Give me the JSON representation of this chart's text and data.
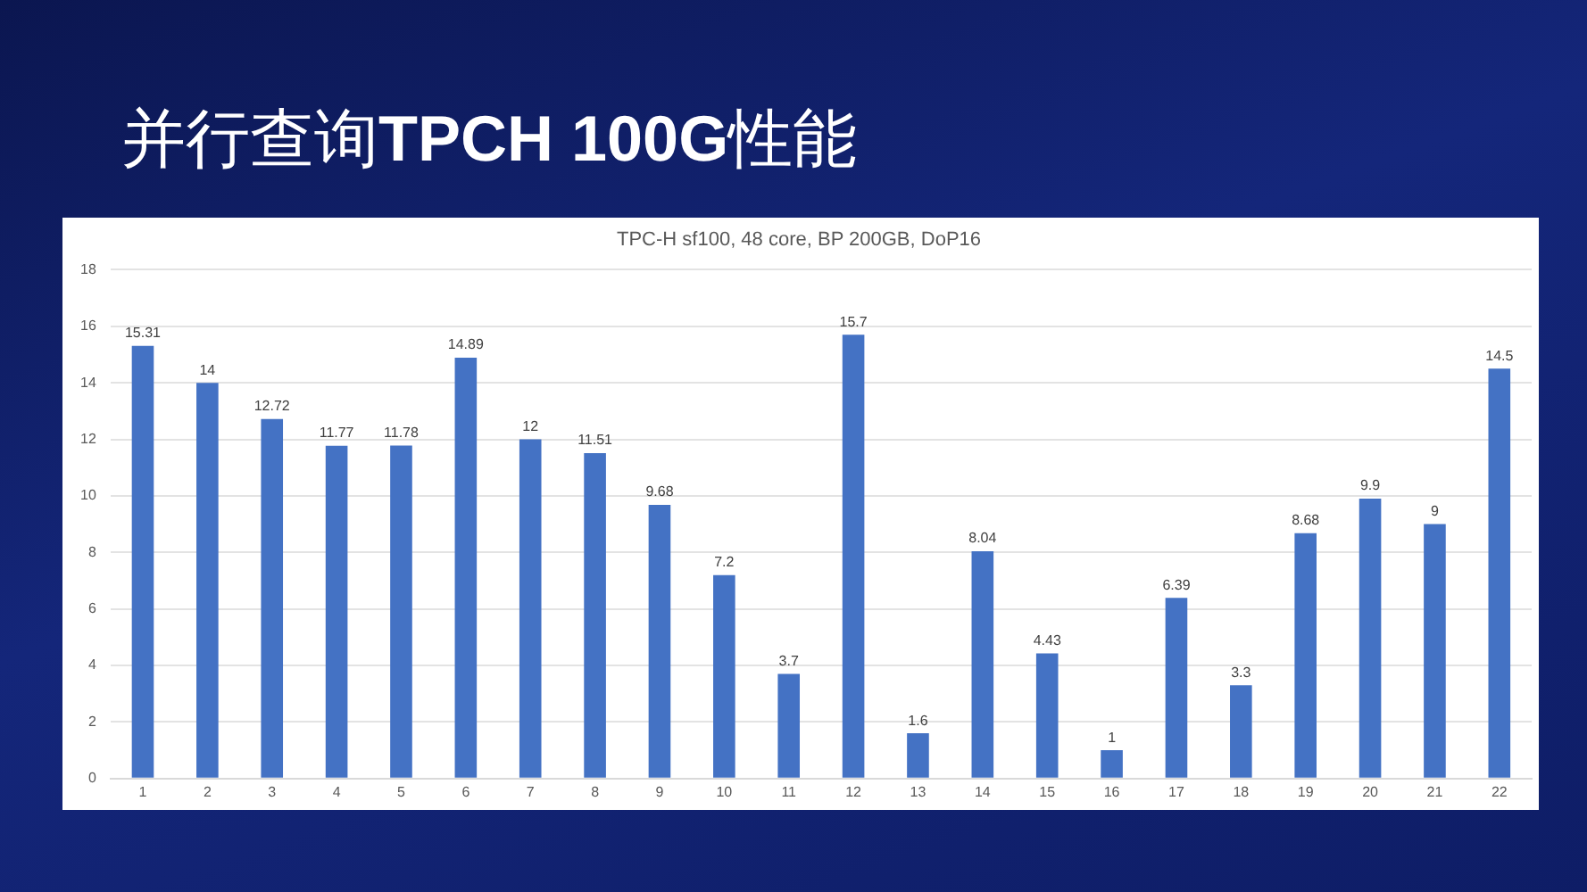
{
  "chart_data": {
    "type": "bar",
    "title": "并行查询TPCH 100G性能",
    "subtitle": "TPC-H sf100, 48 core, BP 200GB, DoP16",
    "categories": [
      "1",
      "2",
      "3",
      "4",
      "5",
      "6",
      "7",
      "8",
      "9",
      "10",
      "11",
      "12",
      "13",
      "14",
      "15",
      "16",
      "17",
      "18",
      "19",
      "20",
      "21",
      "22"
    ],
    "values": [
      15.31,
      14,
      12.72,
      11.77,
      11.78,
      14.89,
      12,
      11.51,
      9.68,
      7.2,
      3.7,
      15.7,
      1.6,
      8.04,
      4.43,
      1,
      6.39,
      3.3,
      8.68,
      9.9,
      9,
      14.5
    ],
    "color": "#4472c4",
    "ylim": [
      0,
      18
    ],
    "yticks": [
      0,
      2,
      4,
      6,
      8,
      10,
      12,
      14,
      16,
      18
    ],
    "grid": "y",
    "data_labels": true
  }
}
